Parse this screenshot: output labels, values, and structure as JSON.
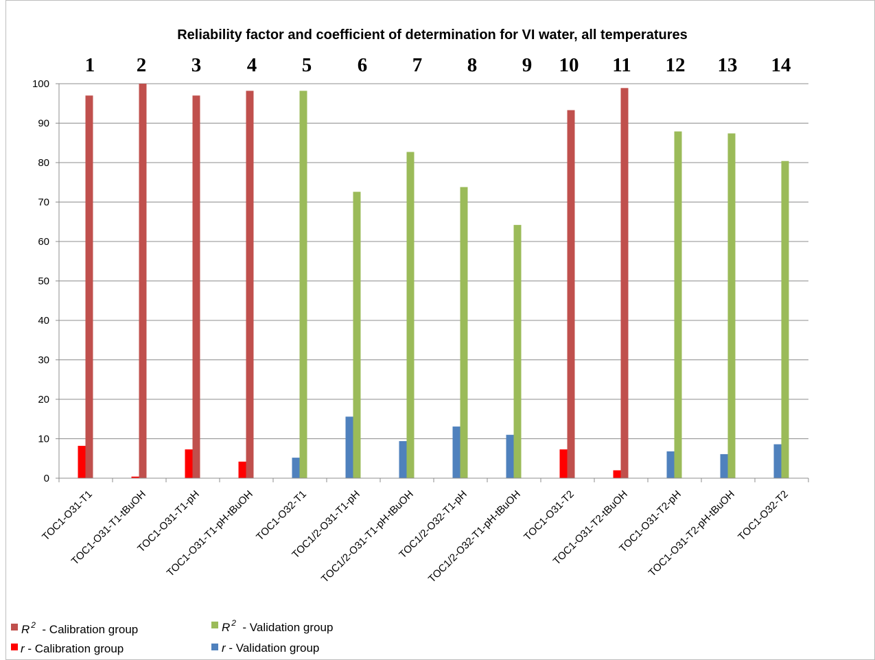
{
  "chart_data": {
    "type": "bar",
    "title": "Reliability factor and coefficient of determination for VI water, all temperatures",
    "xlabel": "",
    "ylabel": "",
    "ylim": [
      0,
      100
    ],
    "yticks": [
      0,
      10,
      20,
      30,
      40,
      50,
      60,
      70,
      80,
      90,
      100
    ],
    "grid": true,
    "legend_position": "bottom-left",
    "column_numbers": [
      "1",
      "2",
      "3",
      "4",
      "5",
      "6",
      "7",
      "8",
      "9",
      "10",
      "11",
      "12",
      "13",
      "14"
    ],
    "categories": [
      "TOC1-O31-T1",
      "TOC1-O31-T1-tBuOH",
      "TOC1-O31-T1-pH",
      "TOC1-O31-T1-pH-tBuOH",
      "TOC1-O32-T1",
      "TOC1/2-O31-T1-pH",
      "TOC1/2-O31-T1-pH-tBuOH",
      "TOC1/2-O32-T1-pH",
      "TOC1/2-O32-T1-pH-tBuOH",
      "TOC1-O31-T2",
      "TOC1-O31-T2-tBuOH",
      "TOC1-O31-T2-pH",
      "TOC1-O31-T2-pH-tBuOH",
      "TOC1-O32-T2"
    ],
    "series": [
      {
        "name": "r - Calibration group",
        "legend_symbol": "r",
        "legend_rest": " - Calibration group",
        "color": "#ff0000",
        "values": [
          8.2,
          0.4,
          7.3,
          4.2,
          null,
          null,
          null,
          null,
          null,
          7.3,
          2.0,
          null,
          null,
          null
        ]
      },
      {
        "name": "R2 - Calibration group",
        "legend_symbol": "R",
        "legend_sup": "2",
        "legend_rest": " - Calibration group",
        "color": "#c0504d",
        "values": [
          97,
          100,
          97,
          98.2,
          null,
          null,
          null,
          null,
          null,
          93.3,
          98.9,
          null,
          null,
          null
        ]
      },
      {
        "name": "r - Validation group",
        "legend_symbol": "r",
        "legend_rest": " - Validation group",
        "color": "#4f81bd",
        "values": [
          null,
          null,
          null,
          null,
          5.2,
          15.6,
          9.4,
          13.1,
          11.0,
          null,
          null,
          6.8,
          6.1,
          8.6
        ]
      },
      {
        "name": "R2 - Validation group",
        "legend_symbol": "R",
        "legend_sup": "2",
        "legend_rest": " - Validation group",
        "color": "#9bbb59",
        "values": [
          null,
          null,
          null,
          null,
          98.2,
          72.6,
          82.7,
          73.8,
          64.2,
          null,
          null,
          87.9,
          87.4,
          80.4
        ]
      }
    ]
  }
}
